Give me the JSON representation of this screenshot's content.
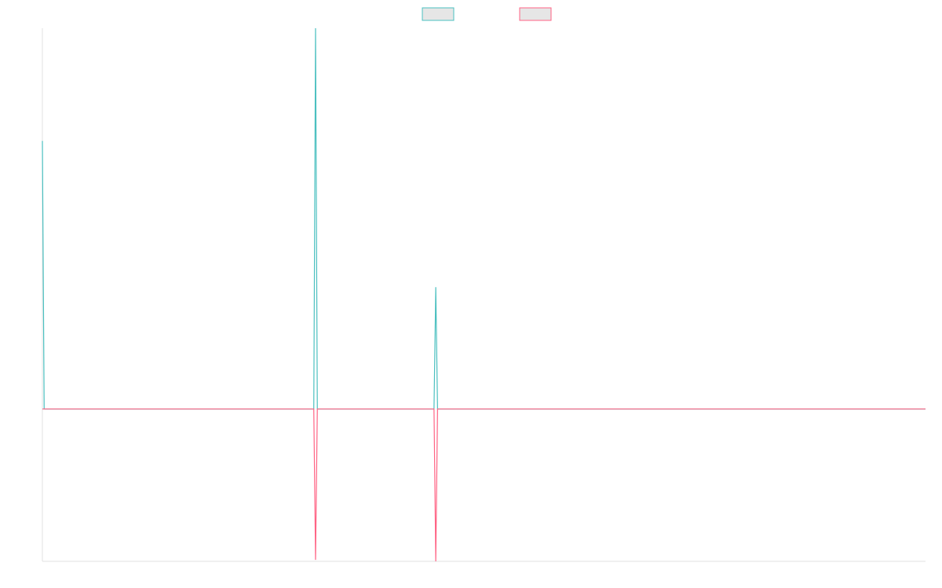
{
  "chart_data": {
    "type": "line",
    "title": "",
    "xlabel": "",
    "ylabel": "",
    "grid": false,
    "legend_position": "top-center",
    "x_points": 1000,
    "ylim": [
      -1.0,
      2.5
    ],
    "series": [
      {
        "color": "#4bc0c0",
        "fill": "#e6e6e6",
        "spikes": [
          {
            "x": 0,
            "y": 1.76
          },
          {
            "x": 309,
            "y": 2.5
          },
          {
            "x": 445,
            "y": 0.8
          }
        ]
      },
      {
        "color": "#ff6384",
        "fill": "#e6e6e6",
        "spikes": [
          {
            "x": 309,
            "y": -0.99
          },
          {
            "x": 445,
            "y": -1.0
          }
        ]
      }
    ]
  }
}
